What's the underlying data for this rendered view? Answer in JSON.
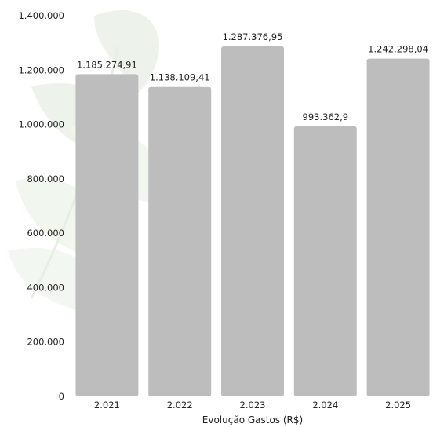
{
  "chart_data": {
    "type": "bar",
    "categories": [
      "2.021",
      "2.022",
      "2.023",
      "2.024",
      "2.025"
    ],
    "values": [
      1185274.91,
      1138109.41,
      1287376.95,
      993362.9,
      1242298.04
    ],
    "data_labels": [
      "1.185.274,91",
      "1.138.109,41",
      "1.287.376,95",
      "993.362,9",
      "1.242.298,04"
    ],
    "y_ticks": [
      0,
      200000,
      400000,
      600000,
      800000,
      1000000,
      1200000,
      1400000
    ],
    "y_tick_labels": [
      "0",
      "200.000",
      "400.000",
      "600.000",
      "800.000",
      "1.000.000",
      "1.200.000",
      "1.400.000"
    ],
    "ylim": [
      0,
      1400000
    ],
    "xlabel": "Evolução Gastos (R$)",
    "ylabel": "",
    "title": "",
    "grid": false,
    "legend": "none",
    "bar_color": "#bdbdbd",
    "text_color": "#222222",
    "watermark_color": "#dfeadb"
  }
}
